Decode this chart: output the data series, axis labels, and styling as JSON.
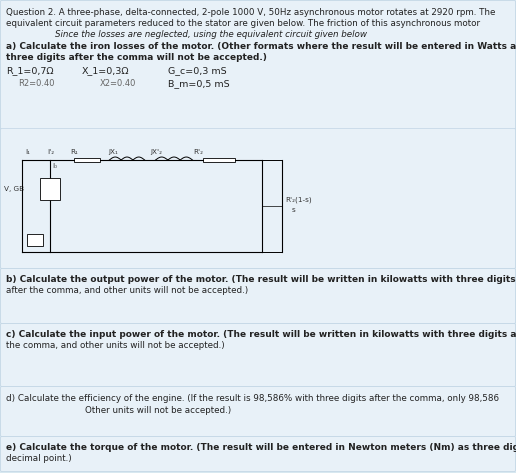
{
  "bg_color": "#d8e8f0",
  "panel_color": "#e8f1f8",
  "panel_edge": "#c0d4e4",
  "text_color": "#222222",
  "gray_color": "#666666",
  "line1": "Question 2. A three-phase, delta-connected, 2-pole 1000 V, 50Hz asynchronous motor rotates at 2920 rpm. The",
  "line2": "equivalent circuit parameters reduced to the stator are given below. The friction of this asynchronous motor",
  "line3": "Since the losses are neglected, using the equivalent circuit given below",
  "part_a1": "a) Calculate the iron losses of the motor. (Other formats where the result will be entered in Watts as",
  "part_a2": "three digits after the comma will not be accepted.)",
  "p1a": "R_1=0,7Ω",
  "p1b": "X_1=0,3Ω",
  "p1c": "G_c=0,3 mS",
  "p2a": "R2=0.40",
  "p2b": "X2=0.40",
  "p2c": "B_m=0,5 mS",
  "part_b1": "b) Calculate the output power of the motor. (The result will be written in kilowatts with three digits",
  "part_b2": "after the comma, and other units will not be accepted.)",
  "part_c1": "c) Calculate the input power of the motor. (The result will be written in kilowatts with three digits after",
  "part_c2": "the comma, and other units will not be accepted.)",
  "part_d1": "d) Calculate the efficiency of the engine. (If the result is 98,586% with three digits after the comma, only 98,586",
  "part_d2": "Other units will not be accepted.)",
  "part_e1": "e) Calculate the torque of the motor. (The result will be entered in Newton meters (Nm) as three digits after the",
  "part_e2": "decimal point.)"
}
